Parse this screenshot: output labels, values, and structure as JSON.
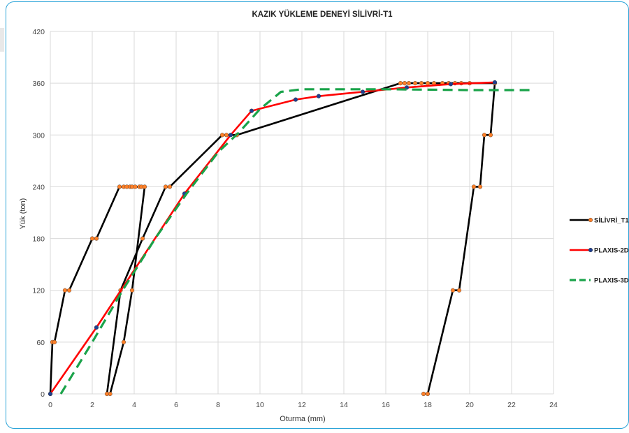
{
  "chart_data": {
    "type": "line",
    "title": "KAZIK YÜKLEME DENEYİ SİLİVRİ-T1",
    "xlabel": "Oturma (mm)",
    "ylabel": "Yük (ton)",
    "xlim": [
      0,
      24
    ],
    "ylim": [
      0,
      420
    ],
    "xticks": [
      "0",
      "2",
      "4",
      "6",
      "8",
      "10",
      "12",
      "14",
      "16",
      "18",
      "20",
      "22",
      "24"
    ],
    "yticks": [
      "0",
      "60",
      "120",
      "180",
      "240",
      "300",
      "360",
      "420"
    ],
    "grid": true,
    "legend_position": "right",
    "series": [
      {
        "name": "SİLİVRİ_T1",
        "color": "#000000",
        "marker_color": "#ff7f27",
        "dash": "solid",
        "x": [
          0,
          0.1,
          0.2,
          0.7,
          0.9,
          2.0,
          2.2,
          3.3,
          3.5,
          3.65,
          3.8,
          3.9,
          4.05,
          4.25,
          4.35,
          4.5,
          3.9,
          3.5,
          2.85,
          2.7,
          3.35,
          4.4,
          5.5,
          5.7,
          8.2,
          8.4,
          8.9,
          16.7,
          16.9,
          17.1,
          17.4,
          17.7,
          18.0,
          18.3,
          18.7,
          19.0,
          19.3,
          19.6,
          20.0,
          21.2,
          21.0,
          20.7,
          20.5,
          20.2,
          19.5,
          19.2,
          18.0,
          17.8
        ],
        "y": [
          0,
          60,
          60,
          120,
          120,
          180,
          180,
          240,
          240,
          240,
          240,
          240,
          240,
          240,
          240,
          240,
          120,
          60,
          0,
          0,
          120,
          180,
          240,
          240,
          300,
          300,
          300,
          360,
          360,
          360,
          360,
          360,
          360,
          360,
          360,
          360,
          360,
          360,
          360,
          360,
          300,
          300,
          240,
          240,
          120,
          120,
          0,
          0
        ]
      },
      {
        "name": "PLAXIS-2D",
        "color": "#ff0000",
        "marker_color": "#1f3f8f",
        "dash": "solid",
        "x": [
          0,
          2.2,
          6.4,
          8.6,
          9.6,
          11.7,
          12.8,
          14.9,
          17.0,
          19.1,
          21.2
        ],
        "y": [
          0,
          77,
          232,
          300,
          328,
          341,
          345,
          350,
          355,
          359,
          361
        ]
      },
      {
        "name": "PLAXIS-3D",
        "color": "#1aa34a",
        "dash": "dashed",
        "x": [
          0.5,
          1.0,
          2.0,
          3.5,
          5.0,
          6.5,
          8.0,
          9.0,
          10.0,
          11.0,
          12.0,
          16.0,
          20.0,
          23.0
        ],
        "y": [
          0,
          20,
          60,
          122,
          180,
          232,
          280,
          303,
          330,
          350,
          353,
          353,
          352,
          352
        ]
      }
    ]
  }
}
